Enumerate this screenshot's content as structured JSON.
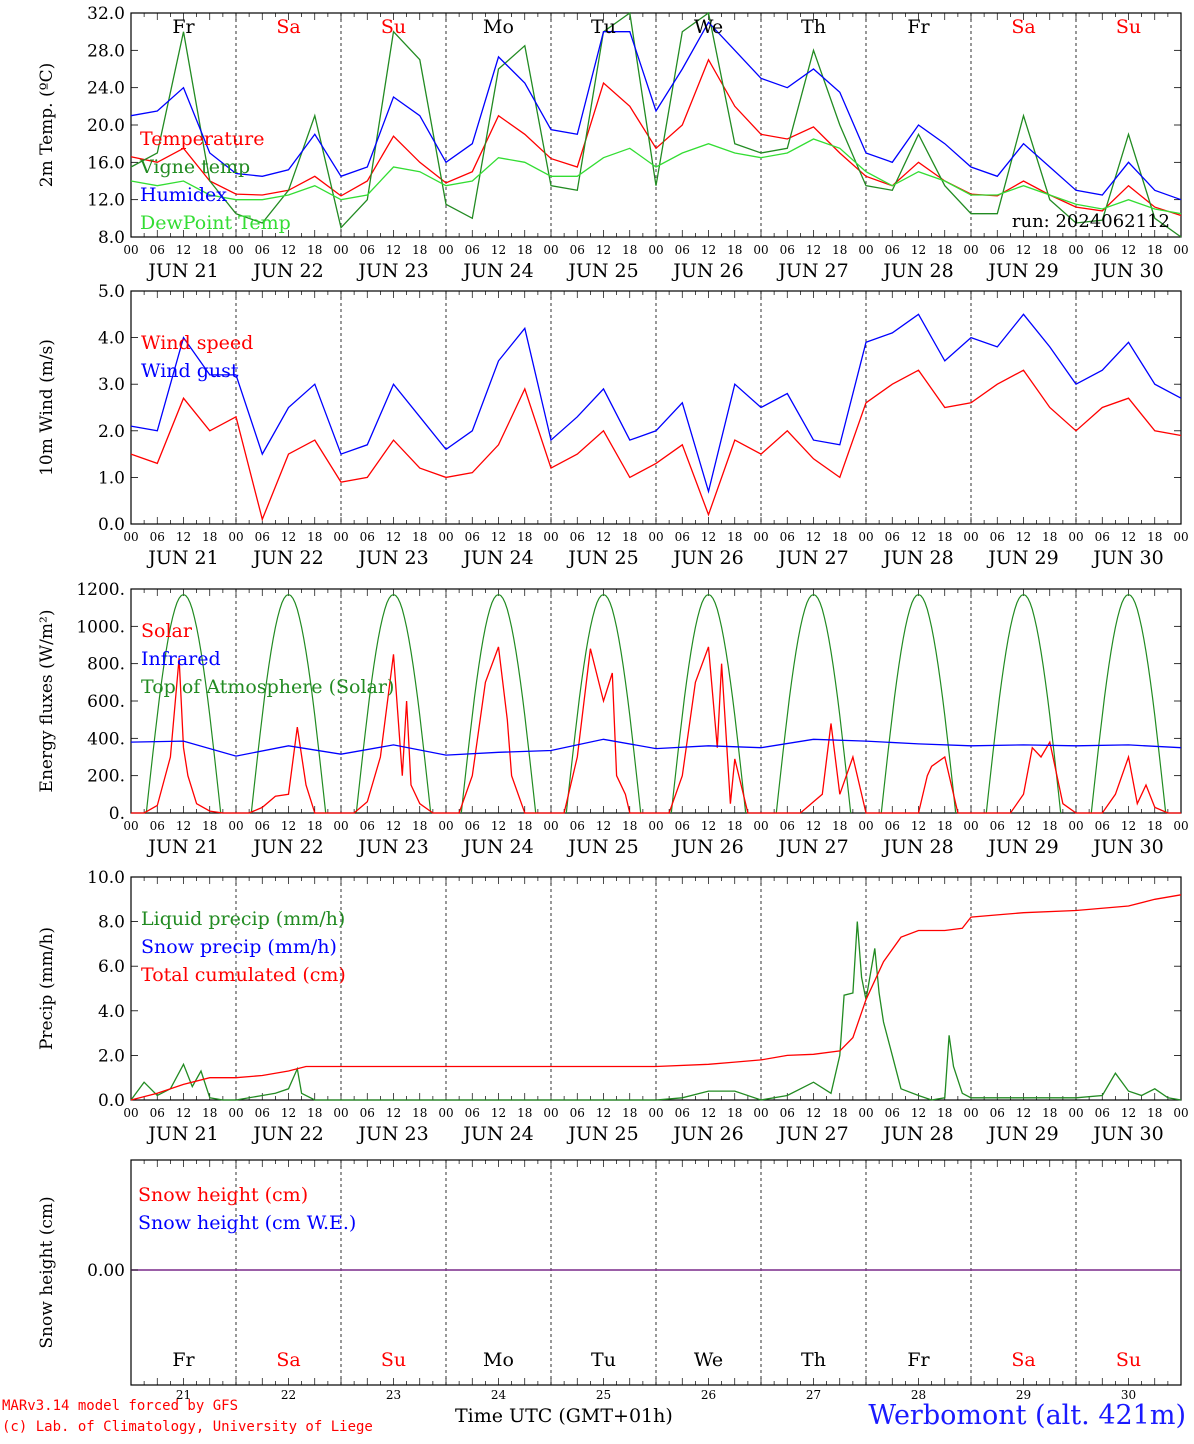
{
  "footer": {
    "credit_line1": "MARv3.14 model forced by GFS",
    "credit_line2": "(c) Lab. of Climatology, University of Liege",
    "x_axis_label": "Time UTC (GMT+01h)",
    "station": "Werbomont (alt. 421m)"
  },
  "days": {
    "weekday_labels": [
      "Fr",
      "Sa",
      "Su",
      "Mo",
      "Tu",
      "We",
      "Th",
      "Fr",
      "Sa",
      "Su"
    ],
    "weekday_colors": [
      "#000000",
      "#ff0000",
      "#ff0000",
      "#000000",
      "#000000",
      "#000000",
      "#000000",
      "#000000",
      "#ff0000",
      "#ff0000"
    ],
    "date_labels": [
      "JUN 21",
      "JUN 22",
      "JUN 23",
      "JUN 24",
      "JUN 25",
      "JUN 26",
      "JUN 27",
      "JUN 28",
      "JUN 29",
      "JUN 30"
    ],
    "day_numbers": [
      "21",
      "22",
      "23",
      "24",
      "25",
      "26",
      "27",
      "28",
      "29",
      "30"
    ],
    "hour_ticks": [
      "00",
      "06",
      "12",
      "18"
    ],
    "final_hour": "00"
  },
  "chart_data": [
    {
      "id": "temperature",
      "type": "line",
      "ylabel": "2m Temp. (ºC)",
      "ylim": [
        8,
        32
      ],
      "yticks": [
        "8.0",
        "12.0",
        "16.0",
        "20.0",
        "24.0",
        "28.0",
        "32.0"
      ],
      "run_label": "run: 2024062112",
      "x_hours": [
        0,
        6,
        12,
        18,
        24,
        30,
        36,
        42,
        48,
        54,
        60,
        66,
        72,
        78,
        84,
        90,
        96,
        102,
        108,
        114,
        120,
        126,
        132,
        138,
        144,
        150,
        156,
        162,
        168,
        174,
        180,
        186,
        192,
        198,
        204,
        210,
        216,
        222,
        228,
        234,
        240
      ],
      "series": [
        {
          "name": "Temperature",
          "color": "#ff0000",
          "values": [
            16.6,
            16.0,
            17.5,
            14.0,
            12.6,
            12.5,
            13.0,
            14.5,
            12.4,
            14.0,
            18.8,
            16.0,
            13.8,
            15.0,
            21.0,
            19.0,
            16.4,
            15.5,
            24.5,
            22.0,
            17.5,
            20.0,
            27.0,
            22.0,
            19.0,
            18.5,
            19.8,
            17.0,
            14.5,
            13.5,
            16.0,
            14.0,
            12.6,
            12.4,
            14.0,
            12.5,
            11.2,
            10.8,
            13.5,
            11.2,
            10.3
          ]
        },
        {
          "name": "Vigne temp",
          "color": "#228b22",
          "values": [
            15.5,
            17.0,
            30.0,
            14.0,
            10.5,
            9.5,
            13.0,
            21.0,
            9.0,
            12.0,
            30.0,
            27.0,
            11.5,
            10.0,
            26.0,
            28.5,
            13.5,
            13.0,
            30.0,
            32.0,
            13.5,
            30.0,
            32.0,
            18.0,
            17.0,
            17.5,
            28.0,
            20.0,
            13.5,
            13.0,
            19.0,
            13.5,
            10.5,
            10.5,
            21.0,
            12.0,
            9.5,
            9.8,
            19.0,
            10.0,
            8.0
          ]
        },
        {
          "name": "Humidex",
          "color": "#0000ff",
          "values": [
            21.0,
            21.5,
            24.0,
            17.0,
            14.8,
            14.5,
            15.2,
            19.0,
            14.5,
            15.5,
            23.0,
            21.0,
            16.0,
            18.0,
            27.3,
            24.5,
            19.5,
            19.0,
            30.0,
            30.0,
            21.5,
            26.0,
            31.0,
            28.0,
            25.0,
            24.0,
            26.0,
            23.5,
            17.0,
            16.0,
            20.0,
            18.0,
            15.5,
            14.5,
            18.0,
            15.5,
            13.0,
            12.5,
            16.0,
            13.0,
            12.0
          ]
        },
        {
          "name": "DewPoint Temp",
          "color": "#33dd33",
          "values": [
            14.0,
            13.5,
            14.0,
            12.5,
            12.0,
            12.0,
            12.5,
            13.5,
            12.0,
            12.5,
            15.5,
            15.0,
            13.5,
            14.0,
            16.5,
            16.0,
            14.5,
            14.5,
            16.5,
            17.5,
            15.5,
            17.0,
            18.0,
            17.0,
            16.5,
            17.0,
            18.5,
            17.5,
            15.0,
            13.5,
            15.0,
            14.0,
            12.5,
            12.5,
            13.5,
            12.5,
            11.5,
            11.0,
            12.0,
            11.0,
            10.5
          ]
        }
      ]
    },
    {
      "id": "wind",
      "type": "line",
      "ylabel": "10m Wind (m/s)",
      "ylim": [
        0,
        5
      ],
      "yticks": [
        "0.0",
        "1.0",
        "2.0",
        "3.0",
        "4.0",
        "5.0"
      ],
      "x_hours": [
        0,
        6,
        12,
        18,
        24,
        30,
        36,
        42,
        48,
        54,
        60,
        66,
        72,
        78,
        84,
        90,
        96,
        102,
        108,
        114,
        120,
        126,
        132,
        138,
        144,
        150,
        156,
        162,
        168,
        174,
        180,
        186,
        192,
        198,
        204,
        210,
        216,
        222,
        228,
        234,
        240
      ],
      "series": [
        {
          "name": "Wind speed",
          "color": "#ff0000",
          "values": [
            1.5,
            1.3,
            2.7,
            2.0,
            2.3,
            0.1,
            1.5,
            1.8,
            0.9,
            1.0,
            1.8,
            1.2,
            1.0,
            1.1,
            1.7,
            2.9,
            1.2,
            1.5,
            2.0,
            1.0,
            1.3,
            1.7,
            0.2,
            1.8,
            1.5,
            2.0,
            1.4,
            1.0,
            2.6,
            3.0,
            3.3,
            2.5,
            2.6,
            3.0,
            3.3,
            2.5,
            2.0,
            2.5,
            2.7,
            2.0,
            1.9
          ]
        },
        {
          "name": "Wind gust",
          "color": "#0000ff",
          "values": [
            2.1,
            2.0,
            4.0,
            3.2,
            3.2,
            1.5,
            2.5,
            3.0,
            1.5,
            1.7,
            3.0,
            2.3,
            1.6,
            2.0,
            3.5,
            4.2,
            1.8,
            2.3,
            2.9,
            1.8,
            2.0,
            2.6,
            0.7,
            3.0,
            2.5,
            2.8,
            1.8,
            1.7,
            3.9,
            4.1,
            4.5,
            3.5,
            4.0,
            3.8,
            4.5,
            3.8,
            3.0,
            3.3,
            3.9,
            3.0,
            2.7
          ]
        }
      ]
    },
    {
      "id": "energy",
      "type": "line",
      "ylabel": "Energy fluxes (W/m²)",
      "ylim": [
        0,
        1200
      ],
      "yticks": [
        "0.",
        "200.",
        "400.",
        "600.",
        "800.",
        "1000.",
        "1200."
      ],
      "series": [
        {
          "name": "Solar",
          "color": "#ff0000",
          "x_hours": [
            0,
            3,
            6,
            9,
            11,
            12,
            13,
            15,
            18,
            21,
            24,
            27,
            30,
            33,
            36,
            38,
            40,
            42,
            44,
            48,
            51,
            54,
            57,
            60,
            62,
            63,
            64,
            66,
            69,
            72,
            75,
            78,
            81,
            84,
            86,
            87,
            90,
            93,
            96,
            99,
            102,
            105,
            108,
            110,
            111,
            113,
            114,
            117,
            120,
            123,
            126,
            129,
            132,
            134,
            135,
            137,
            138,
            141,
            144,
            147,
            150,
            153,
            156,
            158,
            160,
            162,
            165,
            168,
            171,
            174,
            177,
            180,
            182,
            183,
            186,
            189,
            192,
            195,
            198,
            201,
            204,
            206,
            208,
            210,
            213,
            216,
            219,
            222,
            225,
            228,
            230,
            232,
            234,
            237,
            240
          ],
          "values": [
            0,
            0,
            40,
            300,
            830,
            350,
            200,
            50,
            10,
            0,
            0,
            0,
            30,
            90,
            100,
            460,
            150,
            0,
            0,
            0,
            0,
            60,
            300,
            850,
            200,
            600,
            150,
            50,
            0,
            0,
            0,
            200,
            700,
            890,
            500,
            200,
            0,
            0,
            0,
            0,
            300,
            880,
            600,
            750,
            200,
            100,
            0,
            0,
            0,
            0,
            200,
            700,
            890,
            350,
            800,
            50,
            290,
            0,
            0,
            0,
            0,
            0,
            60,
            100,
            480,
            100,
            300,
            0,
            0,
            0,
            0,
            0,
            200,
            250,
            300,
            0,
            0,
            0,
            0,
            0,
            100,
            350,
            300,
            380,
            50,
            0,
            0,
            0,
            100,
            300,
            50,
            150,
            30,
            0,
            0
          ]
        },
        {
          "name": "Infrared",
          "color": "#0000ff",
          "x_hours": [
            0,
            12,
            24,
            36,
            48,
            60,
            72,
            84,
            96,
            108,
            120,
            132,
            144,
            156,
            168,
            180,
            192,
            204,
            216,
            228,
            240
          ],
          "values": [
            380,
            385,
            305,
            360,
            315,
            365,
            310,
            325,
            335,
            395,
            345,
            360,
            350,
            395,
            385,
            370,
            360,
            365,
            360,
            365,
            350
          ]
        },
        {
          "name": "Top of Atmosphere (Solar)",
          "color": "#228b22",
          "peak": 1170,
          "sunrise_hour": 3.5,
          "sunset_hour": 20.5
        }
      ]
    },
    {
      "id": "precip",
      "type": "line",
      "ylabel": "Precip (mm/h)",
      "ylim": [
        0,
        10
      ],
      "yticks": [
        "0.0",
        "2.0",
        "4.0",
        "6.0",
        "8.0",
        "10.0"
      ],
      "series": [
        {
          "name": "Liquid precip (mm/h)",
          "color": "#228b22",
          "x_hours": [
            0,
            3,
            6,
            9,
            12,
            14,
            16,
            18,
            21,
            24,
            30,
            33,
            36,
            38,
            39,
            42,
            48,
            120,
            126,
            132,
            138,
            144,
            150,
            156,
            160,
            162,
            163,
            165,
            166,
            167,
            168,
            170,
            171,
            172,
            174,
            176,
            180,
            183,
            186,
            187,
            188,
            190,
            192,
            204,
            216,
            222,
            225,
            228,
            231,
            234,
            237,
            240
          ],
          "values": [
            0,
            0.8,
            0.2,
            0.5,
            1.6,
            0.6,
            1.3,
            0.1,
            0,
            0,
            0.2,
            0.3,
            0.5,
            1.4,
            0.3,
            0,
            0,
            0,
            0.1,
            0.4,
            0.4,
            0,
            0.2,
            0.8,
            0.3,
            2.0,
            4.7,
            4.8,
            8.0,
            5.5,
            4.5,
            6.8,
            4.8,
            3.5,
            2.0,
            0.5,
            0.2,
            0,
            0.1,
            2.9,
            1.5,
            0.3,
            0.1,
            0.1,
            0.1,
            0.2,
            1.2,
            0.4,
            0.2,
            0.5,
            0.1,
            0
          ]
        },
        {
          "name": "Snow precip (mm/h)",
          "color": "#0000ff",
          "values": []
        },
        {
          "name": "Total cumulated (cm)",
          "color": "#ff0000",
          "x_hours": [
            0,
            6,
            12,
            18,
            24,
            30,
            36,
            40,
            48,
            72,
            96,
            120,
            132,
            138,
            144,
            150,
            156,
            162,
            165,
            168,
            172,
            176,
            180,
            186,
            190,
            192,
            198,
            204,
            216,
            228,
            234,
            240
          ],
          "values": [
            0,
            0.3,
            0.7,
            1.0,
            1.0,
            1.1,
            1.3,
            1.5,
            1.5,
            1.5,
            1.5,
            1.5,
            1.6,
            1.7,
            1.8,
            2.0,
            2.05,
            2.2,
            2.8,
            4.5,
            6.2,
            7.3,
            7.6,
            7.6,
            7.7,
            8.2,
            8.3,
            8.4,
            8.5,
            8.7,
            9.0,
            9.2
          ]
        }
      ]
    },
    {
      "id": "snow",
      "type": "line",
      "ylabel": "Snow height (cm)",
      "yticks": [
        "0.00"
      ],
      "series": [
        {
          "name": "Snow height (cm)",
          "color": "#ff0000",
          "values": [
            0,
            0
          ]
        },
        {
          "name": "Snow height (cm W.E.)",
          "color": "#0000ff",
          "values": [
            0,
            0
          ]
        }
      ]
    }
  ]
}
